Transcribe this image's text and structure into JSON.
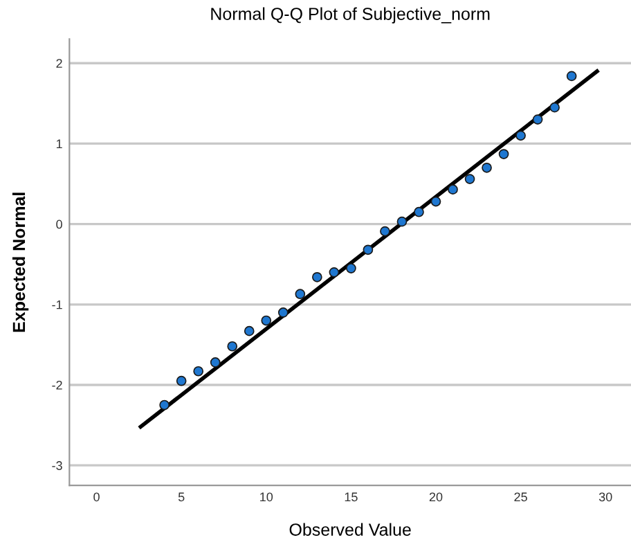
{
  "chart_data": {
    "type": "scatter",
    "title": "Normal Q-Q Plot of Subjective_norm",
    "xlabel": "Observed Value",
    "ylabel": "Expected Normal",
    "series": [
      {
        "type": "scatter",
        "marker": "circle",
        "color": "#1f77d0",
        "x": [
          4,
          5,
          6,
          7,
          8,
          9,
          10,
          11,
          12,
          13,
          14,
          15,
          16,
          17,
          18,
          19,
          20,
          21,
          22,
          23,
          24,
          25,
          26,
          27,
          28
        ],
        "values": [
          -2.25,
          -1.95,
          -1.83,
          -1.72,
          -1.52,
          -1.33,
          -1.2,
          -1.1,
          -0.87,
          -0.66,
          -0.6,
          -0.55,
          -0.32,
          -0.09,
          0.03,
          0.15,
          0.28,
          0.43,
          0.56,
          0.7,
          0.87,
          1.1,
          1.3,
          1.45,
          1.84
        ]
      },
      {
        "type": "line",
        "color": "#000000",
        "x": [
          2.6,
          29.5
        ],
        "values": [
          -2.52,
          1.9
        ]
      }
    ],
    "xlim": [
      -1.6,
      31.5
    ],
    "ylim": [
      -3.25,
      2.3
    ],
    "xticks": [
      0,
      5,
      10,
      15,
      20,
      25,
      30
    ],
    "yticks": [
      -3,
      -2,
      -1,
      0,
      1,
      2
    ],
    "grid": "y"
  }
}
